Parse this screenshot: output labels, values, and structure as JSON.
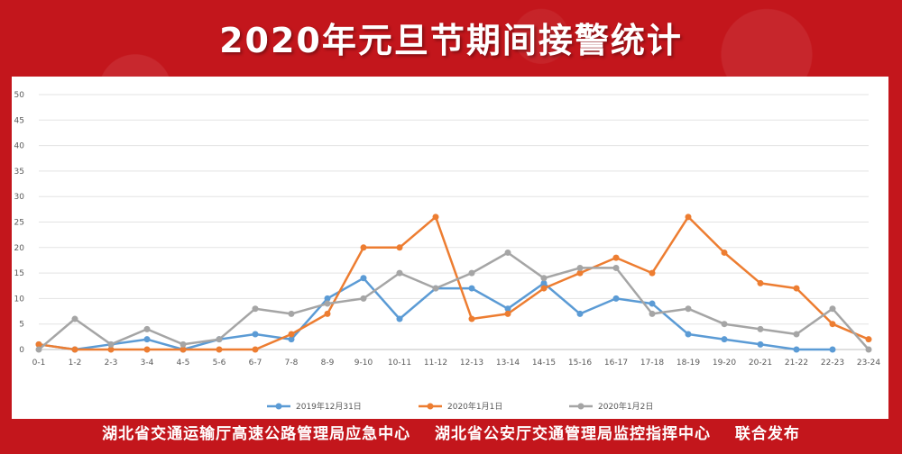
{
  "title": "2020年元旦节期间接警统计",
  "footer": {
    "org1": "湖北省交通运输厅高速公路管理局应急中心",
    "org2": "湖北省公安厅交通管理局监控指挥中心",
    "suffix": "联合发布"
  },
  "chart_data": {
    "type": "line",
    "title": "",
    "xlabel": "",
    "ylabel": "",
    "ylim": [
      0,
      50
    ],
    "yticks": [
      0,
      5,
      10,
      15,
      20,
      25,
      30,
      35,
      40,
      45,
      50
    ],
    "grid": true,
    "legend_position": "bottom",
    "categories": [
      "0-1",
      "1-2",
      "2-3",
      "3-4",
      "4-5",
      "5-6",
      "6-7",
      "7-8",
      "8-9",
      "9-10",
      "10-11",
      "11-12",
      "12-13",
      "13-14",
      "14-15",
      "15-16",
      "16-17",
      "17-18",
      "18-19",
      "19-20",
      "20-21",
      "21-22",
      "22-23",
      "23-24"
    ],
    "series": [
      {
        "name": "2019年12月31日",
        "color": "#5b9bd5",
        "values": [
          1,
          0,
          1,
          2,
          0,
          2,
          3,
          2,
          10,
          14,
          6,
          12,
          12,
          8,
          13,
          7,
          10,
          9,
          3,
          2,
          1,
          0,
          0,
          null
        ]
      },
      {
        "name": "2020年1月1日",
        "color": "#ed7d31",
        "values": [
          1,
          0,
          0,
          0,
          0,
          0,
          0,
          3,
          7,
          20,
          20,
          26,
          6,
          7,
          12,
          15,
          18,
          15,
          26,
          19,
          13,
          12,
          5,
          2
        ]
      },
      {
        "name": "2020年1月2日",
        "color": "#a5a5a5",
        "values": [
          0,
          6,
          1,
          4,
          1,
          2,
          8,
          7,
          9,
          10,
          15,
          12,
          15,
          19,
          14,
          16,
          16,
          7,
          8,
          5,
          4,
          3,
          8,
          0
        ]
      }
    ]
  }
}
